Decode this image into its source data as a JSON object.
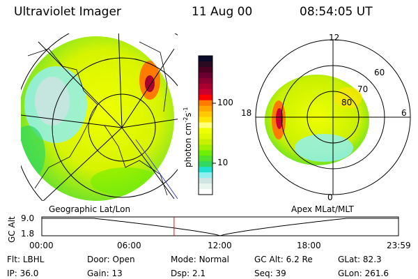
{
  "header": {
    "instrument": "Ultraviolet Imager",
    "date": "11 Aug 00",
    "time": "08:54:05 UT"
  },
  "colorbar": {
    "label": "photon cm",
    "exp1": "-2",
    "unit2": "s",
    "exp2": "-1",
    "ticks": [
      "100",
      "10"
    ],
    "colors": [
      "#0a0a2a",
      "#2a0a20",
      "#4a0020",
      "#6a0030",
      "#8a0030",
      "#aa0030",
      "#cc0030",
      "#ff0000",
      "#ff7a00",
      "#ffa500",
      "#ffc800",
      "#ffe600",
      "#ffff80",
      "#f0ff00",
      "#e0f800",
      "#c8f000",
      "#a0f000",
      "#70ee00",
      "#50e030",
      "#30d860",
      "#20e0d0",
      "#90f0f0",
      "#d0e4e4",
      "#e8f4ee",
      "#ffffff"
    ]
  },
  "polar_plot": {
    "mlt_labels": [
      "12",
      "18",
      "6",
      "0"
    ],
    "lat_labels": [
      "60",
      "70",
      "80"
    ]
  },
  "projection_labels": {
    "left": "Geographic Lat/Lon",
    "right": "Apex MLat/MLT"
  },
  "altitude_plot": {
    "ylabel": "GC Alt",
    "yticks": [
      "9.0",
      "1.8"
    ],
    "xticks": [
      "00:00",
      "06:00",
      "12:00",
      "18:00",
      "23:59"
    ],
    "current_time_hours": 8.9,
    "marker_color": "#ff0000"
  },
  "info": [
    {
      "label": "Flt:",
      "value": "LBHL"
    },
    {
      "label": "Door:",
      "value": "Open"
    },
    {
      "label": "Mode:",
      "value": "Normal"
    },
    {
      "label": "GC Alt:",
      "value": "6.2 Re"
    },
    {
      "label": "GLat:",
      "value": "82.3"
    },
    {
      "label": "IP:",
      "value": "36.0"
    },
    {
      "label": "Gain:",
      "value": "13"
    },
    {
      "label": "Dsp:",
      "value": "2.1"
    },
    {
      "label": "Seq:",
      "value": "39"
    },
    {
      "label": "GLon:",
      "value": "261.6"
    }
  ]
}
